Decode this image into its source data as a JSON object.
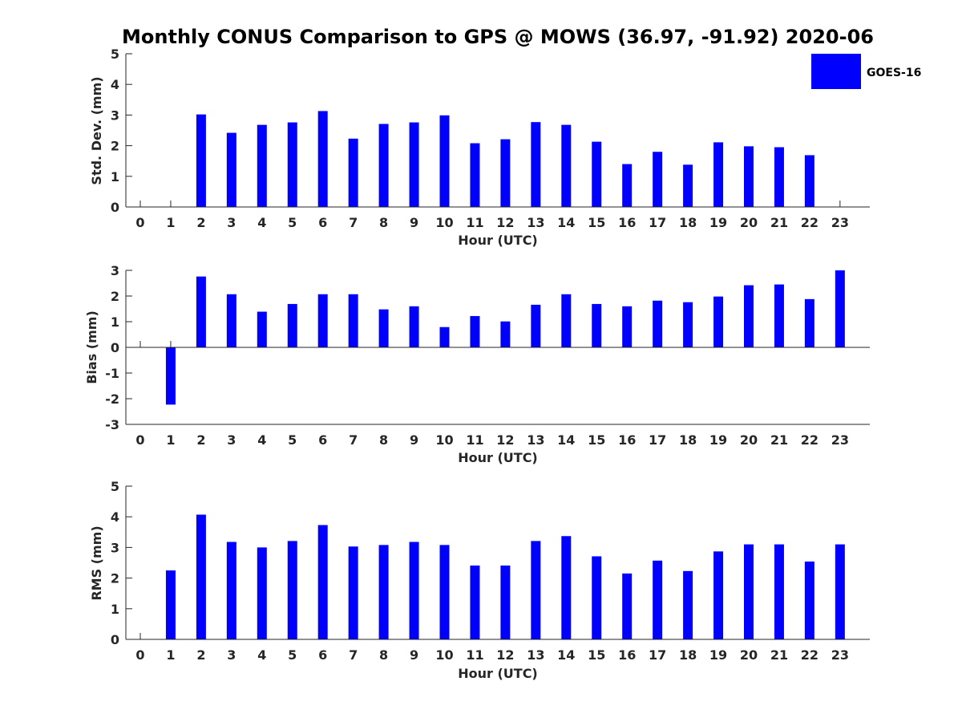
{
  "figure": {
    "title": "Monthly CONUS Comparison to GPS @ MOWS (36.97, -91.92) 2020-06",
    "bar_color": "#0000ff",
    "legend": {
      "label": "GOES-16",
      "placement": "top-right"
    }
  },
  "chart_data": [
    {
      "type": "bar",
      "xlabel": "Hour (UTC)",
      "ylabel": "Std. Dev. (mm)",
      "x": [
        0,
        1,
        2,
        3,
        4,
        5,
        6,
        7,
        8,
        9,
        10,
        11,
        12,
        13,
        14,
        15,
        16,
        17,
        18,
        19,
        20,
        21,
        22,
        23
      ],
      "ylim": [
        0,
        5
      ],
      "yticks": [
        0,
        1,
        2,
        3,
        4,
        5
      ],
      "series": [
        {
          "name": "GOES-16",
          "values": [
            0,
            0,
            3.02,
            2.42,
            2.68,
            2.76,
            3.13,
            2.23,
            2.71,
            2.76,
            2.99,
            2.08,
            2.21,
            2.77,
            2.68,
            2.13,
            1.4,
            1.8,
            1.38,
            2.11,
            1.98,
            1.95,
            1.69,
            0
          ]
        }
      ]
    },
    {
      "type": "bar",
      "xlabel": "Hour (UTC)",
      "ylabel": "Bias (mm)",
      "x": [
        0,
        1,
        2,
        3,
        4,
        5,
        6,
        7,
        8,
        9,
        10,
        11,
        12,
        13,
        14,
        15,
        16,
        17,
        18,
        19,
        20,
        21,
        22,
        23
      ],
      "ylim": [
        -3,
        3
      ],
      "yticks": [
        -3,
        -2,
        -1,
        0,
        1,
        2,
        3
      ],
      "series": [
        {
          "name": "GOES-16",
          "values": [
            0,
            -2.23,
            2.76,
            2.07,
            1.39,
            1.69,
            2.07,
            2.07,
            1.48,
            1.6,
            0.79,
            1.22,
            1.01,
            1.66,
            2.07,
            1.69,
            1.6,
            1.82,
            1.76,
            1.98,
            2.42,
            2.45,
            1.88,
            3.0
          ]
        }
      ]
    },
    {
      "type": "bar",
      "xlabel": "Hour (UTC)",
      "ylabel": "RMS (mm)",
      "x": [
        0,
        1,
        2,
        3,
        4,
        5,
        6,
        7,
        8,
        9,
        10,
        11,
        12,
        13,
        14,
        15,
        16,
        17,
        18,
        19,
        20,
        21,
        22,
        23
      ],
      "ylim": [
        0,
        5
      ],
      "yticks": [
        0,
        1,
        2,
        3,
        4,
        5
      ],
      "series": [
        {
          "name": "GOES-16",
          "values": [
            0,
            2.25,
            4.07,
            3.18,
            3.0,
            3.21,
            3.73,
            3.03,
            3.08,
            3.18,
            3.08,
            2.41,
            2.41,
            3.21,
            3.37,
            2.71,
            2.15,
            2.57,
            2.23,
            2.87,
            3.1,
            3.1,
            2.54,
            3.1
          ]
        }
      ]
    }
  ]
}
